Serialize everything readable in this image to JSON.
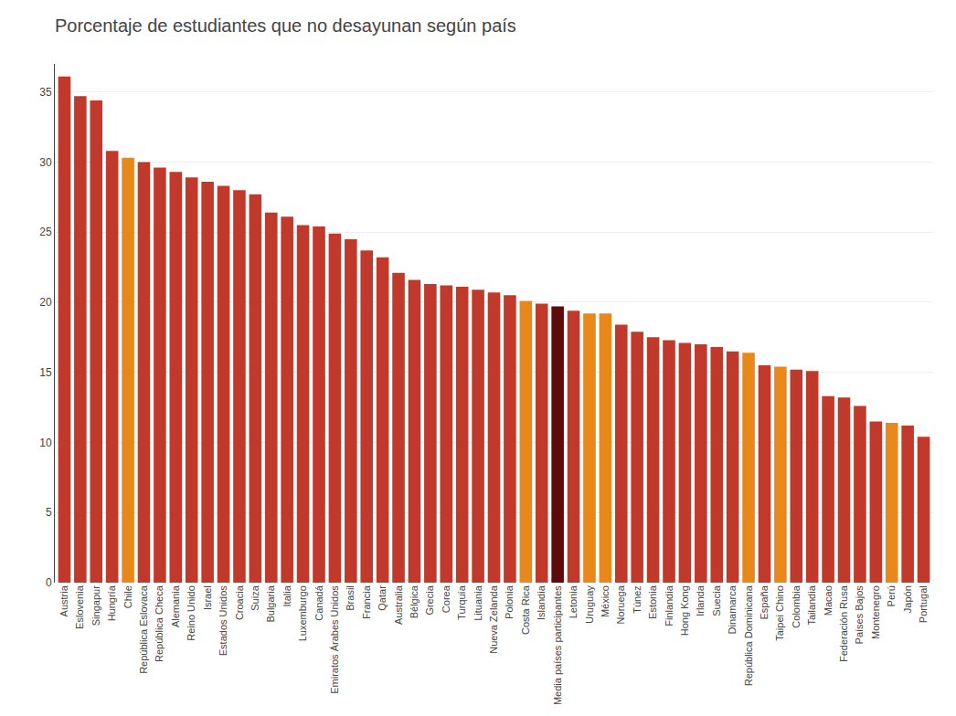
{
  "chart_data": {
    "type": "bar",
    "title": "Porcentaje de estudiantes que no desayunan según país",
    "categories": [
      "Austria",
      "Eslovenia",
      "Singapur",
      "Hungría",
      "Chile",
      "República Eslovaca",
      "República Checa",
      "Alemania",
      "Reino Unido",
      "Israel",
      "Estados Unidos",
      "Croacia",
      "Suiza",
      "Bulgaria",
      "Italia",
      "Luxemburgo",
      "Canadá",
      "Emiratos Árabes Unidos",
      "Brasil",
      "Francia",
      "Qatar",
      "Australia",
      "Bélgica",
      "Grecia",
      "Corea",
      "Turquía",
      "Lituania",
      "Nueva Zelanda",
      "Polonia",
      "Costa Rica",
      "Islandia",
      "Media países participantes",
      "Letonia",
      "Uruguay",
      "México",
      "Noruega",
      "Túnez",
      "Estonia",
      "Finlandia",
      "Hong Kong",
      "Irlanda",
      "Suecia",
      "Dinamarca",
      "República Dominicana",
      "España",
      "Taipei Chino",
      "Colombia",
      "Tailandia",
      "Macao",
      "Federación Rusa",
      "Países Bajos",
      "Montenegro",
      "Perú",
      "Japón",
      "Portugal"
    ],
    "values": [
      36.1,
      34.7,
      34.4,
      30.8,
      30.3,
      30.0,
      29.6,
      29.3,
      28.9,
      28.6,
      28.3,
      28.0,
      27.7,
      26.4,
      26.1,
      25.5,
      25.4,
      24.9,
      24.5,
      23.7,
      23.2,
      22.1,
      21.6,
      21.3,
      21.2,
      21.1,
      20.9,
      20.7,
      20.5,
      20.1,
      19.9,
      19.7,
      19.4,
      19.2,
      19.2,
      18.4,
      17.9,
      17.5,
      17.3,
      17.1,
      17.0,
      16.8,
      16.5,
      16.4,
      15.5,
      15.4,
      15.2,
      15.1,
      13.3,
      13.2,
      12.6,
      11.5,
      11.4,
      11.2,
      10.4
    ],
    "colors": [
      "#C0392B",
      "#C0392B",
      "#C0392B",
      "#C0392B",
      "#E8871A",
      "#C0392B",
      "#C0392B",
      "#C0392B",
      "#C0392B",
      "#C0392B",
      "#C0392B",
      "#C0392B",
      "#C0392B",
      "#C0392B",
      "#C0392B",
      "#C0392B",
      "#C0392B",
      "#C0392B",
      "#C0392B",
      "#C0392B",
      "#C0392B",
      "#C0392B",
      "#C0392B",
      "#C0392B",
      "#C0392B",
      "#C0392B",
      "#C0392B",
      "#C0392B",
      "#C0392B",
      "#E8871A",
      "#C0392B",
      "#5C0A0A",
      "#C0392B",
      "#E8871A",
      "#E8871A",
      "#C0392B",
      "#C0392B",
      "#C0392B",
      "#C0392B",
      "#C0392B",
      "#C0392B",
      "#C0392B",
      "#C0392B",
      "#E8871A",
      "#C0392B",
      "#E8871A",
      "#C0392B",
      "#C0392B",
      "#C0392B",
      "#C0392B",
      "#C0392B",
      "#C0392B",
      "#E8871A",
      "#C0392B",
      "#C0392B"
    ],
    "ylim": [
      0,
      37
    ],
    "yticks": [
      0,
      5,
      10,
      15,
      20,
      25,
      30,
      35
    ],
    "grid": true
  }
}
